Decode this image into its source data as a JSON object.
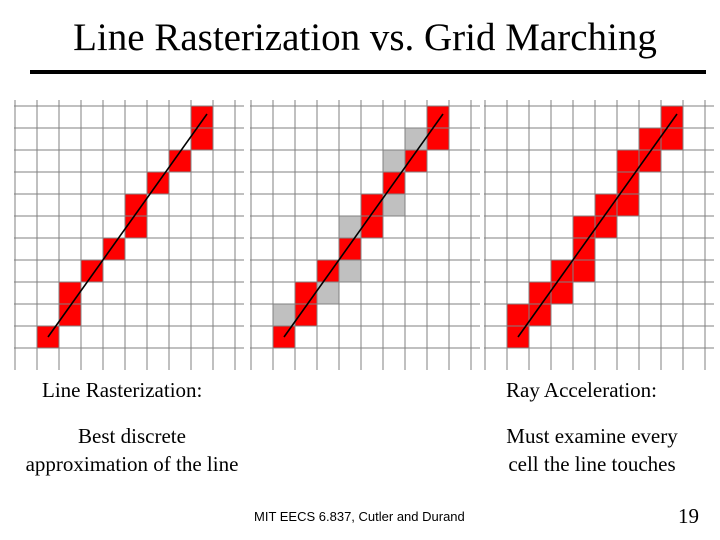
{
  "slide": {
    "title": "Line Rasterization vs. Grid Marching",
    "left_caption": "Line Rasterization:",
    "left_desc_line1": "Best discrete",
    "left_desc_line2": "approximation of the line",
    "right_caption": "Ray Acceleration:",
    "right_desc_line1": "Must examine every",
    "right_desc_line2": "cell the line touches",
    "footer": "MIT EECS 6.837, Cutler and Durand",
    "page_number": "19"
  },
  "colors": {
    "red_cell": "#ff0000",
    "gray_cell": "#c0c0c0",
    "grid_line": "#808080",
    "line": "#000000"
  }
}
